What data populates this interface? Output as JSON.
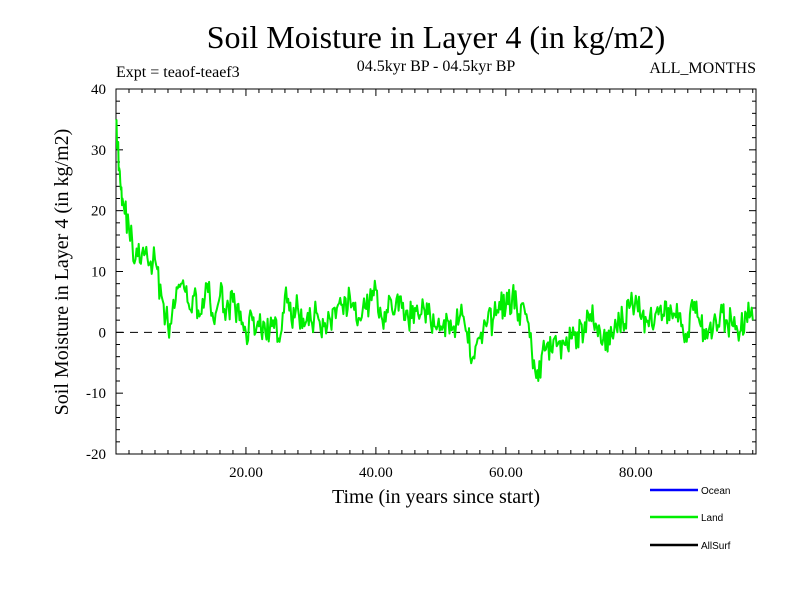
{
  "chart_data": {
    "type": "line",
    "title": "Soil Moisture in Layer 4 (in kg/m2)",
    "subtitle_left": "Expt = teaof-teaef3",
    "subtitle_center": "04.5kyr BP - 04.5kyr BP",
    "subtitle_right": "ALL_MONTHS",
    "xlabel": "Time (in years since start)",
    "ylabel": "Soil Moisture in Layer 4 (in kg/m2)",
    "xlim": [
      0,
      98.5
    ],
    "ylim": [
      -20,
      40
    ],
    "x_ticks": [
      20,
      40,
      60,
      80
    ],
    "x_tick_labels": [
      "20.00",
      "40.00",
      "60.00",
      "80.00"
    ],
    "y_ticks": [
      -20,
      -10,
      0,
      10,
      20,
      30,
      40
    ],
    "y_tick_labels": [
      "-20",
      "-10",
      "0",
      "10",
      "20",
      "30",
      "40"
    ],
    "zero_line": "dashed",
    "legend_position": "bottom-right",
    "legend": [
      {
        "name": "Ocean",
        "color": "#0000ff"
      },
      {
        "name": "Land",
        "color": "#00ee00"
      },
      {
        "name": "AllSurf",
        "color": "#000000"
      }
    ],
    "series": [
      {
        "name": "Land",
        "color": "#00ee00",
        "x": [
          0,
          0.5,
          1,
          2,
          3,
          4,
          5,
          6,
          7,
          8,
          9,
          10,
          11,
          12,
          13,
          14,
          15,
          16,
          17,
          18,
          19,
          20,
          21,
          22,
          23,
          24,
          25,
          26,
          27,
          28,
          29,
          30,
          31,
          32,
          33,
          34,
          35,
          36,
          37,
          38,
          39,
          40,
          41,
          42,
          43,
          44,
          45,
          46,
          47,
          48,
          49,
          50,
          51,
          52,
          53,
          54,
          55,
          56,
          57,
          58,
          59,
          60,
          61,
          62,
          63,
          64,
          65,
          66,
          67,
          68,
          69,
          70,
          71,
          72,
          73,
          74,
          75,
          76,
          77,
          78,
          79,
          80,
          81,
          82,
          83,
          84,
          85,
          86,
          87,
          88,
          89,
          90,
          91,
          92,
          93,
          94,
          95,
          96,
          97,
          98
        ],
        "values": [
          35,
          27,
          22,
          17,
          12,
          13,
          11,
          12,
          6,
          1,
          4,
          8,
          5,
          6,
          3,
          8,
          2,
          6,
          4,
          5,
          2,
          0,
          2,
          1,
          0,
          1,
          -1,
          6,
          2,
          4,
          1,
          2,
          3,
          1,
          2,
          4,
          3,
          6,
          2,
          4,
          5,
          7,
          2,
          6,
          4,
          4,
          2,
          4,
          3,
          3,
          1,
          1,
          2,
          1,
          3,
          0,
          -4,
          -1,
          1,
          2,
          5,
          4,
          6,
          3,
          3,
          -3,
          -8,
          -3,
          -3,
          -2,
          -2,
          -1,
          0,
          0,
          3,
          1,
          -1,
          -2,
          1,
          2,
          4,
          6,
          3,
          1,
          3,
          2,
          4,
          3,
          1,
          0,
          5,
          1,
          -1,
          2,
          3,
          2,
          1,
          0,
          3,
          2
        ]
      }
    ]
  }
}
